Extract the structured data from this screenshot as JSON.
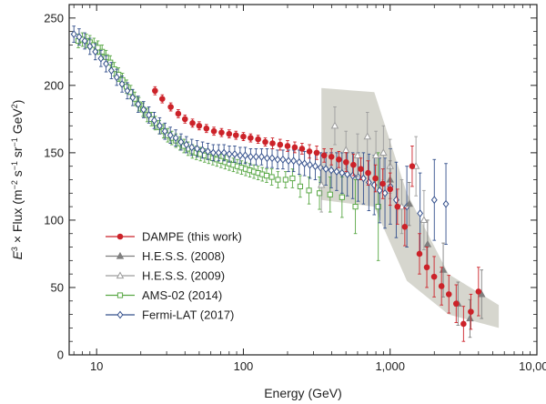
{
  "chart_data": {
    "type": "scatter",
    "xlabel": "Energy (GeV)",
    "ylabel_parts": {
      "e": "E",
      "e_exp": "3",
      "middle": " × Flux (m",
      "m_exp": "−2",
      "s": " s",
      "s_exp": "−1",
      "sr": " sr",
      "sr_exp": "−1",
      "gev": " GeV",
      "gev_exp": "2",
      "close": ")"
    },
    "x_scale": "log",
    "xlim": [
      6.5,
      10000
    ],
    "ylim": [
      0,
      260
    ],
    "x_ticks": [
      {
        "value": 10,
        "label": "10"
      },
      {
        "value": 100,
        "label": "100"
      },
      {
        "value": 1000,
        "label": "1,000"
      },
      {
        "value": 10000,
        "label": "10,000"
      }
    ],
    "y_ticks": [
      {
        "value": 0,
        "label": "0"
      },
      {
        "value": 50,
        "label": "50"
      },
      {
        "value": 100,
        "label": "100"
      },
      {
        "value": 150,
        "label": "150"
      },
      {
        "value": 200,
        "label": "200"
      },
      {
        "value": 250,
        "label": "250"
      }
    ],
    "grid": false,
    "legend_position": "bottom-left",
    "band": {
      "series": "H.E.S.S. (2009)",
      "color": "#cfcfc6",
      "upper": [
        [
          340,
          198
        ],
        [
          780,
          195
        ],
        [
          1300,
          120
        ],
        [
          2500,
          60
        ],
        [
          5500,
          37
        ]
      ],
      "lower": [
        [
          5500,
          20
        ],
        [
          2500,
          30
        ],
        [
          1300,
          55
        ],
        [
          780,
          110
        ],
        [
          340,
          115
        ]
      ]
    },
    "series": [
      {
        "name": "DAMPE (this work)",
        "color": "#cc2229",
        "marker": "circle",
        "filled": true,
        "points": [
          [
            25,
            196,
            3
          ],
          [
            28,
            190,
            3
          ],
          [
            32,
            184,
            3
          ],
          [
            36,
            179,
            3
          ],
          [
            40,
            175,
            3
          ],
          [
            45,
            172,
            3
          ],
          [
            50,
            170,
            3
          ],
          [
            56,
            168,
            3
          ],
          [
            63,
            166,
            3
          ],
          [
            71,
            165,
            3
          ],
          [
            80,
            164,
            3
          ],
          [
            89,
            163,
            3
          ],
          [
            100,
            162,
            3
          ],
          [
            112,
            161,
            3
          ],
          [
            126,
            160,
            3
          ],
          [
            141,
            158,
            3
          ],
          [
            158,
            157,
            4
          ],
          [
            178,
            156,
            4
          ],
          [
            200,
            155,
            4
          ],
          [
            224,
            154,
            4
          ],
          [
            251,
            153,
            4
          ],
          [
            282,
            151,
            5
          ],
          [
            316,
            150,
            5
          ],
          [
            355,
            148,
            5
          ],
          [
            398,
            147,
            6
          ],
          [
            447,
            145,
            6
          ],
          [
            501,
            143,
            7
          ],
          [
            562,
            141,
            8
          ],
          [
            631,
            138,
            8
          ],
          [
            708,
            135,
            9
          ],
          [
            794,
            131,
            10
          ],
          [
            891,
            127,
            11
          ],
          [
            1000,
            123,
            12
          ],
          [
            1122,
            110,
            13
          ],
          [
            1259,
            95,
            14
          ],
          [
            1413,
            140,
            15
          ],
          [
            1585,
            75,
            15
          ],
          [
            1778,
            65,
            15
          ],
          [
            1995,
            58,
            15
          ],
          [
            2239,
            51,
            14
          ],
          [
            2512,
            45,
            14
          ],
          [
            2818,
            38,
            14
          ],
          [
            3162,
            23,
            13
          ],
          [
            3548,
            32,
            13
          ],
          [
            4000,
            47,
            18
          ]
        ]
      },
      {
        "name": "H.E.S.S. (2008)",
        "color": "#7f7f7f",
        "marker": "triangle",
        "filled": true,
        "points": [
          [
            1000,
            130,
            14
          ],
          [
            1350,
            112,
            16
          ],
          [
            1800,
            82,
            18
          ],
          [
            2300,
            63,
            20
          ],
          [
            2900,
            38,
            16
          ],
          [
            3500,
            27,
            14
          ],
          [
            4200,
            45,
            18
          ]
        ]
      },
      {
        "name": "H.E.S.S. (2009)",
        "color": "#9d9d9d",
        "marker": "triangle",
        "filled": false,
        "points": [
          [
            340,
            126,
            20
          ],
          [
            420,
            170,
            14
          ],
          [
            500,
            152,
            14
          ],
          [
            600,
            148,
            16
          ],
          [
            700,
            162,
            18
          ],
          [
            800,
            148,
            18
          ],
          [
            900,
            150,
            20
          ],
          [
            1000,
            140,
            20
          ],
          [
            1200,
            110,
            20
          ],
          [
            1500,
            140,
            22
          ],
          [
            1700,
            100,
            22
          ]
        ]
      },
      {
        "name": "AMS-02 (2014)",
        "color": "#5aa846",
        "marker": "square",
        "filled": false,
        "points": [
          [
            7.5,
            233,
            5
          ],
          [
            8.0,
            234,
            5
          ],
          [
            8.5,
            233,
            5
          ],
          [
            9.0,
            232,
            5
          ],
          [
            9.6,
            230,
            5
          ],
          [
            10.2,
            228,
            5
          ],
          [
            10.9,
            225,
            5
          ],
          [
            11.6,
            221,
            5
          ],
          [
            12.4,
            217,
            5
          ],
          [
            13.2,
            212,
            5
          ],
          [
            14.1,
            208,
            5
          ],
          [
            15.0,
            204,
            5
          ],
          [
            16.0,
            199,
            5
          ],
          [
            17.1,
            195,
            5
          ],
          [
            18.2,
            190,
            5
          ],
          [
            19.4,
            186,
            5
          ],
          [
            20.7,
            182,
            5
          ],
          [
            22.1,
            178,
            5
          ],
          [
            23.6,
            175,
            5
          ],
          [
            25.1,
            172,
            5
          ],
          [
            26.8,
            169,
            5
          ],
          [
            28.6,
            166,
            5
          ],
          [
            30.5,
            163,
            5
          ],
          [
            32.5,
            161,
            5
          ],
          [
            34.7,
            159,
            5
          ],
          [
            37.0,
            157,
            5
          ],
          [
            39.4,
            155,
            5
          ],
          [
            42.0,
            153,
            5
          ],
          [
            44.9,
            151,
            5
          ],
          [
            47.8,
            150,
            5
          ],
          [
            51.0,
            149,
            5
          ],
          [
            54.4,
            148,
            5
          ],
          [
            58.0,
            147,
            5
          ],
          [
            61.9,
            146,
            5
          ],
          [
            66.0,
            145,
            5
          ],
          [
            70.4,
            144,
            5
          ],
          [
            75.1,
            143,
            5
          ],
          [
            80.1,
            142,
            5
          ],
          [
            85.4,
            141,
            5
          ],
          [
            91.1,
            140,
            5
          ],
          [
            97.2,
            139,
            5
          ],
          [
            103.7,
            138,
            5
          ],
          [
            110.6,
            137,
            5
          ],
          [
            118.0,
            136,
            5
          ],
          [
            126.0,
            135,
            5
          ],
          [
            134.6,
            134,
            5
          ],
          [
            144.0,
            133,
            5
          ],
          [
            156.0,
            132,
            6
          ],
          [
            172.0,
            130,
            6
          ],
          [
            194.0,
            130,
            6
          ],
          [
            216.0,
            131,
            7
          ],
          [
            244.0,
            125,
            8
          ],
          [
            280.0,
            122,
            10
          ],
          [
            330.0,
            120,
            12
          ],
          [
            390.0,
            119,
            13
          ],
          [
            470.0,
            117,
            15
          ],
          [
            580.0,
            110,
            20
          ],
          [
            830.0,
            110,
            40
          ]
        ]
      },
      {
        "name": "Fermi-LAT (2017)",
        "color": "#34508c",
        "marker": "diamond",
        "filled": false,
        "points": [
          [
            7.0,
            238,
            6
          ],
          [
            7.6,
            236,
            6
          ],
          [
            8.3,
            233,
            6
          ],
          [
            9.0,
            229,
            6
          ],
          [
            9.8,
            225,
            6
          ],
          [
            10.7,
            220,
            6
          ],
          [
            11.6,
            216,
            6
          ],
          [
            12.6,
            211,
            6
          ],
          [
            13.7,
            206,
            6
          ],
          [
            14.9,
            201,
            6
          ],
          [
            16.2,
            196,
            6
          ],
          [
            17.6,
            191,
            6
          ],
          [
            19.2,
            186,
            6
          ],
          [
            20.9,
            182,
            6
          ],
          [
            22.7,
            178,
            6
          ],
          [
            24.7,
            174,
            6
          ],
          [
            26.9,
            170,
            6
          ],
          [
            29.2,
            166,
            6
          ],
          [
            31.8,
            163,
            6
          ],
          [
            34.6,
            161,
            6
          ],
          [
            37.6,
            158,
            6
          ],
          [
            40.9,
            156,
            6
          ],
          [
            44.5,
            154,
            6
          ],
          [
            48.4,
            153,
            6
          ],
          [
            52.7,
            152,
            6
          ],
          [
            57.3,
            151,
            6
          ],
          [
            62.3,
            150,
            6
          ],
          [
            67.8,
            150,
            6
          ],
          [
            73.8,
            150,
            6
          ],
          [
            80.2,
            149,
            6
          ],
          [
            87.3,
            149,
            6
          ],
          [
            95.0,
            148,
            6
          ],
          [
            103,
            148,
            6
          ],
          [
            112,
            147,
            6
          ],
          [
            122,
            147,
            6
          ],
          [
            133,
            147,
            6
          ],
          [
            145,
            146,
            7
          ],
          [
            157,
            146,
            7
          ],
          [
            171,
            145,
            7
          ],
          [
            186,
            145,
            7
          ],
          [
            203,
            144,
            8
          ],
          [
            220,
            144,
            8
          ],
          [
            240,
            143,
            9
          ],
          [
            261,
            142,
            9
          ],
          [
            284,
            141,
            10
          ],
          [
            309,
            140,
            10
          ],
          [
            336,
            139,
            11
          ],
          [
            365,
            138,
            12
          ],
          [
            397,
            137,
            13
          ],
          [
            432,
            136,
            14
          ],
          [
            470,
            135,
            15
          ],
          [
            511,
            134,
            16
          ],
          [
            556,
            133,
            17
          ],
          [
            605,
            132,
            18
          ],
          [
            658,
            131,
            19
          ],
          [
            716,
            128,
            21
          ],
          [
            779,
            126,
            22
          ],
          [
            848,
            122,
            24
          ],
          [
            922,
            120,
            26
          ],
          [
            1003,
            125,
            28
          ],
          [
            1100,
            115,
            28
          ],
          [
            1300,
            110,
            30
          ],
          [
            1600,
            105,
            30
          ],
          [
            2000,
            115,
            30
          ],
          [
            2400,
            112,
            30
          ]
        ]
      }
    ]
  }
}
